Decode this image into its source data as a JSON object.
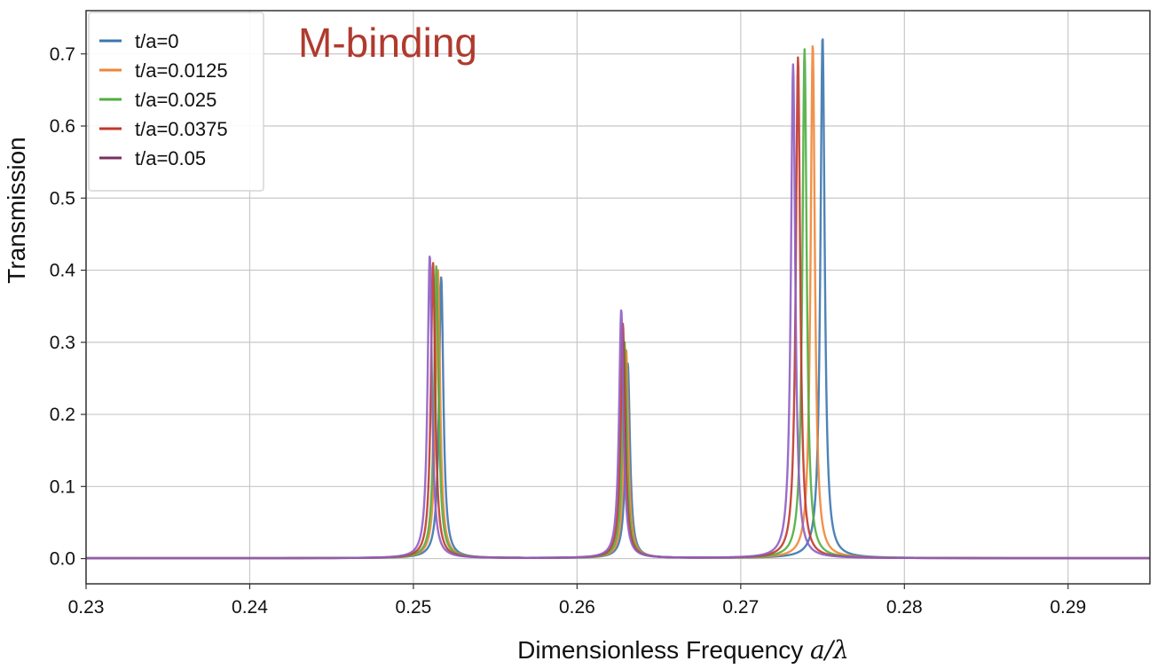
{
  "chart_data": {
    "type": "line",
    "title": "",
    "annotation": "M-binding",
    "annotation_color": "#b03a2e",
    "xlabel": "Dimensionless Frequency ",
    "xlabel_math": "a/λ",
    "ylabel": "Transmission",
    "xlim": [
      0.23,
      0.295
    ],
    "ylim": [
      -0.035,
      0.76
    ],
    "xticks": [
      0.23,
      0.24,
      0.25,
      0.26,
      0.27,
      0.28,
      0.29
    ],
    "xtick_labels": [
      "0.23",
      "0.24",
      "0.25",
      "0.26",
      "0.27",
      "0.28",
      "0.29"
    ],
    "yticks": [
      0.0,
      0.1,
      0.2,
      0.3,
      0.4,
      0.5,
      0.6,
      0.7
    ],
    "ytick_labels": [
      "0.0",
      "0.1",
      "0.2",
      "0.3",
      "0.4",
      "0.5",
      "0.6",
      "0.7"
    ],
    "grid": true,
    "legend_position": "top-left",
    "series": [
      {
        "name": "t/a=0",
        "color": "#3b75af",
        "peaks": [
          {
            "x": 0.2517,
            "y": 0.39
          },
          {
            "x": 0.2631,
            "y": 0.27
          },
          {
            "x": 0.275,
            "y": 0.724
          }
        ]
      },
      {
        "name": "t/a=0.0125",
        "color": "#ef8636",
        "peaks": [
          {
            "x": 0.2515,
            "y": 0.4
          },
          {
            "x": 0.263,
            "y": 0.29
          },
          {
            "x": 0.2744,
            "y": 0.713
          }
        ]
      },
      {
        "name": "t/a=0.025",
        "color": "#4fae3f",
        "peaks": [
          {
            "x": 0.2514,
            "y": 0.405
          },
          {
            "x": 0.2629,
            "y": 0.3
          },
          {
            "x": 0.2739,
            "y": 0.706
          }
        ]
      },
      {
        "name": "t/a=0.0375",
        "color": "#c0392b",
        "peaks": [
          {
            "x": 0.2512,
            "y": 0.41
          },
          {
            "x": 0.2628,
            "y": 0.325
          },
          {
            "x": 0.2735,
            "y": 0.695
          }
        ]
      },
      {
        "name": "t/a=0.05",
        "color": "#8e5ec4",
        "legend_color": "#7a2f5f",
        "peaks": [
          {
            "x": 0.251,
            "y": 0.42
          },
          {
            "x": 0.2627,
            "y": 0.345
          },
          {
            "x": 0.2732,
            "y": 0.685
          }
        ]
      }
    ]
  }
}
